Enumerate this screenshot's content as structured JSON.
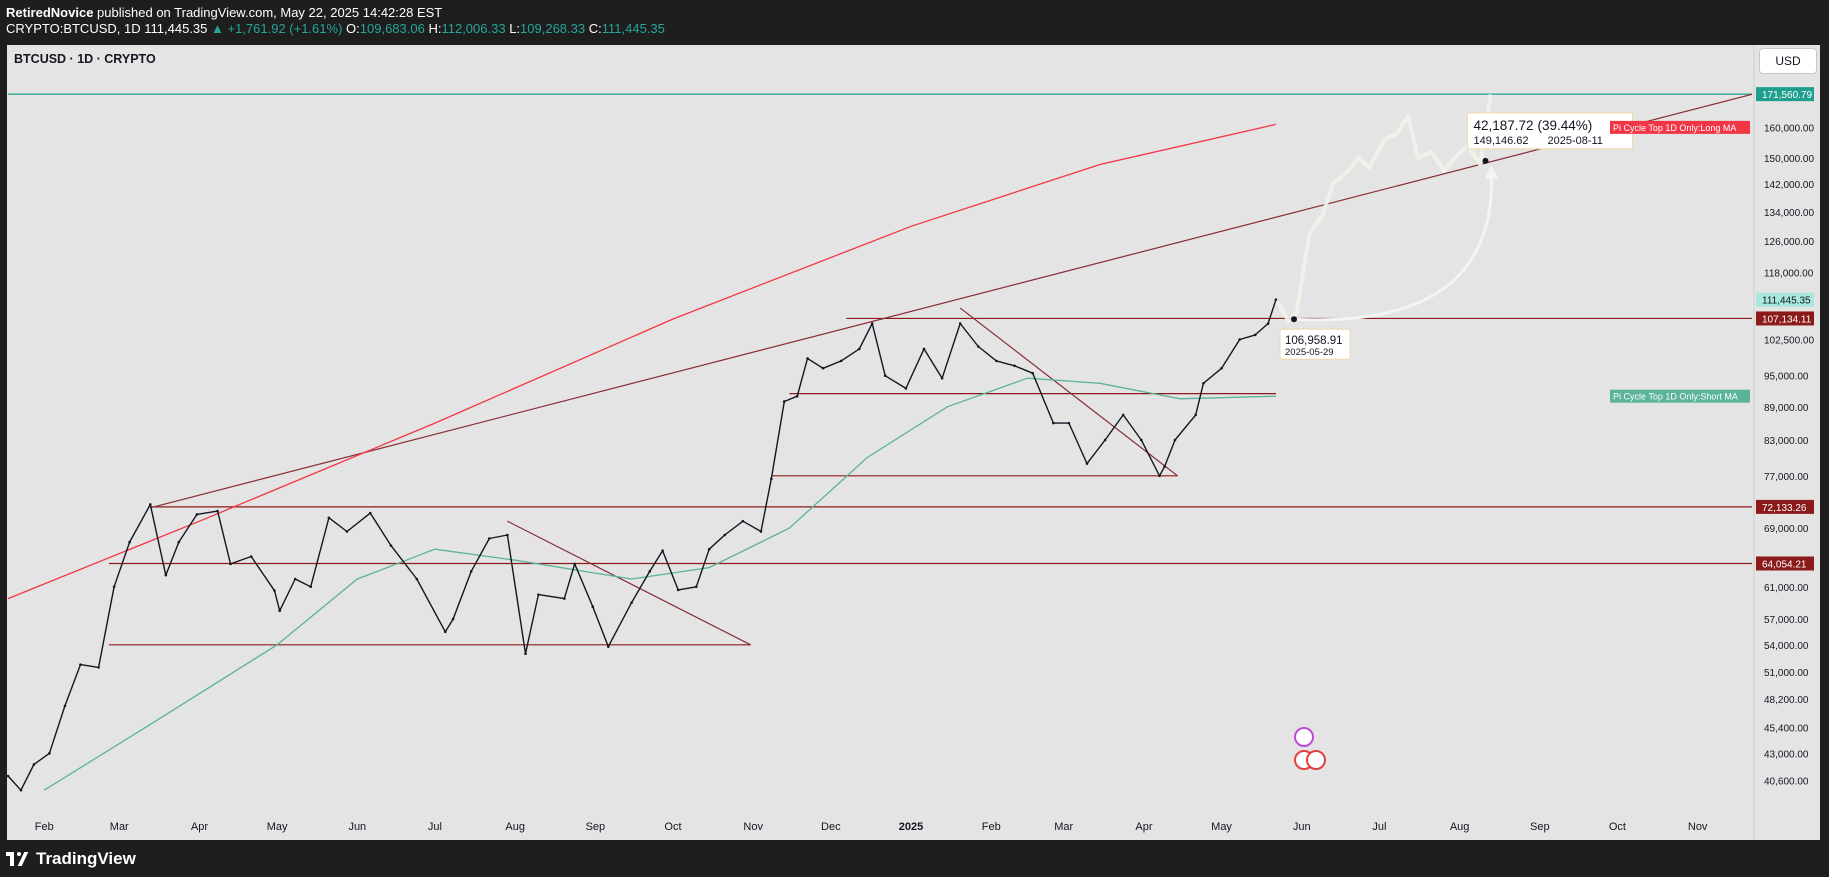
{
  "header": {
    "author": "RetiredNovice",
    "published": "published on TradingView.com, May 22, 2025 14:42:28 EST",
    "symbol_full": "CRYPTO:BTCUSD, 1D",
    "last": "111,445.35",
    "change": "▲ +1,761.92 (+1.61%)",
    "o_label": "O:",
    "o": "109,683.06",
    "h_label": "H:",
    "h": "112,006.33",
    "l_label": "L:",
    "l": "109,268.33",
    "c_label": "C:",
    "c": "111,445.35"
  },
  "chart_title": "BTCUSD · 1D · CRYPTO",
  "currency_button": "USD",
  "brand": "TradingView",
  "colors": {
    "up": "#26a69a",
    "red_ma": "#f23645",
    "green_ma": "#5bb39a",
    "trendline": "#8a2a33",
    "projection": "#eef3e8"
  },
  "chart_data": {
    "type": "line",
    "title": "BTCUSD · 1D · CRYPTO",
    "y_scale": "log",
    "ylim": [
      38500,
      182000
    ],
    "x_range": [
      "2024-01-18",
      "2025-11-22"
    ],
    "x_ticks": [
      {
        "label": "Feb",
        "date": "2024-02-01"
      },
      {
        "label": "Mar",
        "date": "2024-03-01"
      },
      {
        "label": "Apr",
        "date": "2024-04-01"
      },
      {
        "label": "May",
        "date": "2024-05-01"
      },
      {
        "label": "Jun",
        "date": "2024-06-01"
      },
      {
        "label": "Jul",
        "date": "2024-07-01"
      },
      {
        "label": "Aug",
        "date": "2024-08-01"
      },
      {
        "label": "Sep",
        "date": "2024-09-01"
      },
      {
        "label": "Oct",
        "date": "2024-10-01"
      },
      {
        "label": "Nov",
        "date": "2024-11-01"
      },
      {
        "label": "Dec",
        "date": "2024-12-01"
      },
      {
        "label": "2025",
        "date": "2025-01-01"
      },
      {
        "label": "Feb",
        "date": "2025-02-01"
      },
      {
        "label": "Mar",
        "date": "2025-03-01"
      },
      {
        "label": "Apr",
        "date": "2025-04-01"
      },
      {
        "label": "May",
        "date": "2025-05-01"
      },
      {
        "label": "Jun",
        "date": "2025-06-01"
      },
      {
        "label": "Jul",
        "date": "2025-07-01"
      },
      {
        "label": "Aug",
        "date": "2025-08-01"
      },
      {
        "label": "Sep",
        "date": "2025-09-01"
      },
      {
        "label": "Oct",
        "date": "2025-10-01"
      },
      {
        "label": "Nov",
        "date": "2025-11-01"
      }
    ],
    "y_ticks": [
      {
        "label": "160,000.00",
        "value": 160000
      },
      {
        "label": "150,000.00",
        "value": 150000
      },
      {
        "label": "142,000.00",
        "value": 142000
      },
      {
        "label": "134,000.00",
        "value": 134000
      },
      {
        "label": "126,000.00",
        "value": 126000
      },
      {
        "label": "118,000.00",
        "value": 118000
      },
      {
        "label": "102,500.00",
        "value": 102500
      },
      {
        "label": "95,000.00",
        "value": 95000
      },
      {
        "label": "89,000.00",
        "value": 89000
      },
      {
        "label": "83,000.00",
        "value": 83000
      },
      {
        "label": "77,000.00",
        "value": 77000
      },
      {
        "label": "69,000.00",
        "value": 69000
      },
      {
        "label": "61,000.00",
        "value": 61000
      },
      {
        "label": "57,000.00",
        "value": 57000
      },
      {
        "label": "54,000.00",
        "value": 54000
      },
      {
        "label": "51,000.00",
        "value": 51000
      },
      {
        "label": "48,200.00",
        "value": 48200
      },
      {
        "label": "45,400.00",
        "value": 45400
      },
      {
        "label": "43,000.00",
        "value": 43000
      },
      {
        "label": "40,600.00",
        "value": 40600
      }
    ],
    "price_labels": [
      {
        "label": "171,560.79",
        "value": 171560.79,
        "color": "#1e9e8c"
      },
      {
        "label": "111,445.35",
        "value": 111445.35,
        "color": "#a8e8dc"
      },
      {
        "label": "107,134.11",
        "value": 107134.11,
        "color": "#8b1a1a"
      },
      {
        "label": "72,133.26",
        "value": 72133.26,
        "color": "#8b1a1a"
      },
      {
        "label": "64,054.21",
        "value": 64054.21,
        "color": "#8b1a1a"
      }
    ],
    "price_close": [
      [
        "2024-01-18",
        41000
      ],
      [
        "2024-01-23",
        39800
      ],
      [
        "2024-01-28",
        42000
      ],
      [
        "2024-02-03",
        43000
      ],
      [
        "2024-02-09",
        47500
      ],
      [
        "2024-02-15",
        51800
      ],
      [
        "2024-02-22",
        51500
      ],
      [
        "2024-02-28",
        61000
      ],
      [
        "2024-03-05",
        67000
      ],
      [
        "2024-03-13",
        72500
      ],
      [
        "2024-03-19",
        62500
      ],
      [
        "2024-03-24",
        67000
      ],
      [
        "2024-03-31",
        71000
      ],
      [
        "2024-04-08",
        71500
      ],
      [
        "2024-04-13",
        64000
      ],
      [
        "2024-04-21",
        65000
      ],
      [
        "2024-04-30",
        60500
      ],
      [
        "2024-05-02",
        58000
      ],
      [
        "2024-05-08",
        62000
      ],
      [
        "2024-05-14",
        61000
      ],
      [
        "2024-05-21",
        70500
      ],
      [
        "2024-05-28",
        68500
      ],
      [
        "2024-06-06",
        71200
      ],
      [
        "2024-06-14",
        66500
      ],
      [
        "2024-06-24",
        62000
      ],
      [
        "2024-07-05",
        55500
      ],
      [
        "2024-07-08",
        57000
      ],
      [
        "2024-07-15",
        63000
      ],
      [
        "2024-07-22",
        67500
      ],
      [
        "2024-07-29",
        68000
      ],
      [
        "2024-08-05",
        53000
      ],
      [
        "2024-08-10",
        60000
      ],
      [
        "2024-08-20",
        59500
      ],
      [
        "2024-08-24",
        64000
      ],
      [
        "2024-08-31",
        58500
      ],
      [
        "2024-09-06",
        53800
      ],
      [
        "2024-09-15",
        59000
      ],
      [
        "2024-09-22",
        63000
      ],
      [
        "2024-09-27",
        65800
      ],
      [
        "2024-10-03",
        60600
      ],
      [
        "2024-10-10",
        61000
      ],
      [
        "2024-10-15",
        66000
      ],
      [
        "2024-10-21",
        68000
      ],
      [
        "2024-10-28",
        70000
      ],
      [
        "2024-11-04",
        68500
      ],
      [
        "2024-11-08",
        76500
      ],
      [
        "2024-11-13",
        90000
      ],
      [
        "2024-11-18",
        91000
      ],
      [
        "2024-11-22",
        98500
      ],
      [
        "2024-11-28",
        96500
      ],
      [
        "2024-12-05",
        98000
      ],
      [
        "2024-12-12",
        100500
      ],
      [
        "2024-12-17",
        106000
      ],
      [
        "2024-12-22",
        95000
      ],
      [
        "2024-12-30",
        92500
      ],
      [
        "2025-01-06",
        100500
      ],
      [
        "2025-01-13",
        94500
      ],
      [
        "2025-01-20",
        106000
      ],
      [
        "2025-01-27",
        101000
      ],
      [
        "2025-02-03",
        98000
      ],
      [
        "2025-02-10",
        97000
      ],
      [
        "2025-02-17",
        95500
      ],
      [
        "2025-02-25",
        86000
      ],
      [
        "2025-03-03",
        86000
      ],
      [
        "2025-03-10",
        79000
      ],
      [
        "2025-03-17",
        83000
      ],
      [
        "2025-03-24",
        87500
      ],
      [
        "2025-03-31",
        83000
      ],
      [
        "2025-04-07",
        77000
      ],
      [
        "2025-04-09",
        78500
      ],
      [
        "2025-04-13",
        83000
      ],
      [
        "2025-04-21",
        87500
      ],
      [
        "2025-04-24",
        93500
      ],
      [
        "2025-05-01",
        96500
      ],
      [
        "2025-05-08",
        102500
      ],
      [
        "2025-05-14",
        103500
      ],
      [
        "2025-05-19",
        106000
      ],
      [
        "2025-05-22",
        111445
      ]
    ],
    "projection": [
      [
        "2025-05-22",
        111445
      ],
      [
        "2025-05-27",
        106500
      ],
      [
        "2025-05-30",
        108500
      ],
      [
        "2025-06-04",
        128000
      ],
      [
        "2025-06-09",
        133000
      ],
      [
        "2025-06-13",
        142000
      ],
      [
        "2025-06-19",
        146000
      ],
      [
        "2025-06-23",
        150000
      ],
      [
        "2025-06-27",
        147000
      ],
      [
        "2025-07-03",
        156000
      ],
      [
        "2025-07-08",
        158000
      ],
      [
        "2025-07-12",
        164000
      ],
      [
        "2025-07-16",
        150000
      ],
      [
        "2025-07-21",
        152000
      ],
      [
        "2025-07-26",
        146000
      ],
      [
        "2025-07-30",
        150000
      ],
      [
        "2025-08-04",
        154000
      ],
      [
        "2025-08-09",
        148000
      ],
      [
        "2025-08-13",
        171500
      ]
    ],
    "series": [
      {
        "name": "Pi Cycle Top 1D Only:Long MA",
        "color": "#f23645",
        "values": [
          [
            "2024-01-18",
            59500
          ],
          [
            "2024-04-01",
            70000
          ],
          [
            "2024-07-01",
            86000
          ],
          [
            "2024-10-01",
            107000
          ],
          [
            "2025-01-01",
            130000
          ],
          [
            "2025-03-15",
            148000
          ],
          [
            "2025-05-22",
            161000
          ]
        ]
      },
      {
        "name": "Pi Cycle Top 1D Only:Short MA",
        "color": "#5bb39a",
        "values": [
          [
            "2024-02-01",
            39800
          ],
          [
            "2024-03-15",
            46000
          ],
          [
            "2024-05-01",
            54000
          ],
          [
            "2024-06-01",
            62000
          ],
          [
            "2024-07-01",
            66000
          ],
          [
            "2024-08-01",
            64500
          ],
          [
            "2024-09-15",
            62000
          ],
          [
            "2024-10-15",
            63500
          ],
          [
            "2024-11-15",
            69000
          ],
          [
            "2024-12-15",
            80000
          ],
          [
            "2025-01-15",
            89000
          ],
          [
            "2025-02-15",
            94500
          ],
          [
            "2025-03-15",
            93500
          ],
          [
            "2025-04-15",
            90500
          ],
          [
            "2025-05-22",
            91000
          ]
        ]
      }
    ],
    "series_labels": [
      {
        "text": "Pi Cycle Top 1D Only:Long MA",
        "value": 160000
      },
      {
        "text": "Pi Cycle Top 1D Only:Short MA",
        "value": 91000
      }
    ],
    "horizontal_lines": [
      {
        "value": 171560.79,
        "from": "2024-01-18",
        "to": "2025-11-22",
        "color": "#1e9e8c"
      },
      {
        "value": 107134.11,
        "from": "2024-12-07",
        "to": "2025-11-22",
        "color": "#8b1a1a"
      },
      {
        "value": 91500,
        "from": "2024-11-15",
        "to": "2025-05-22",
        "color": "#8b1a1a"
      },
      {
        "value": 77000,
        "from": "2024-11-08",
        "to": "2025-04-14",
        "color": "#8b1a1a"
      },
      {
        "value": 72133.26,
        "from": "2024-03-13",
        "to": "2025-11-22",
        "color": "#8b1a1a"
      },
      {
        "value": 64054.21,
        "from": "2024-02-26",
        "to": "2025-11-22",
        "color": "#8b1a1a"
      },
      {
        "value": 54000,
        "from": "2024-02-26",
        "to": "2024-10-31",
        "color": "#8b1a1a"
      }
    ],
    "trend_lines": [
      {
        "from": [
          "2024-03-13",
          72000
        ],
        "to": [
          "2025-11-22",
          171500
        ]
      },
      {
        "from": [
          "2024-07-29",
          70000
        ],
        "to": [
          "2024-10-31",
          54000
        ]
      },
      {
        "from": [
          "2025-01-20",
          109500
        ],
        "to": [
          "2025-04-14",
          77000
        ]
      }
    ],
    "annotations": [
      {
        "price": "106,958.91",
        "date": "2025-05-29",
        "anchor": [
          "2025-05-29",
          106958.91
        ]
      },
      {
        "change": "42,187.72",
        "percent": "(39.44%)",
        "price": "149,146.62",
        "date": "2025-08-11",
        "anchor": [
          "2025-08-11",
          149146.62
        ]
      }
    ],
    "legend": "none",
    "grid": false
  }
}
